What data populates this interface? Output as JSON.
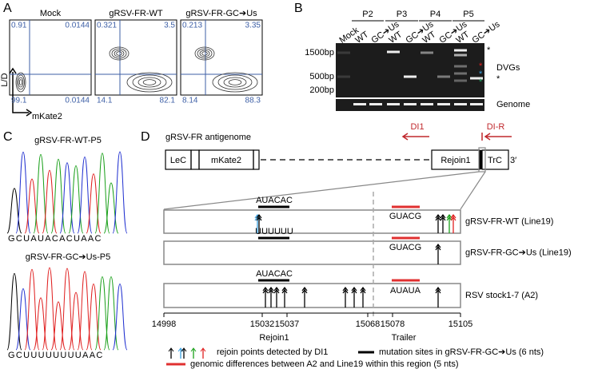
{
  "panels": {
    "A": {
      "label": "A",
      "y_axis": "L/D",
      "x_axis": "mKate2",
      "plots": [
        {
          "title": "Mock",
          "quadrants": [
            "0.91",
            "0.0144",
            "99.1",
            "0.0144"
          ]
        },
        {
          "title": "gRSV-FR-WT",
          "quadrants": [
            "0.321",
            "3.5",
            "14.1",
            "82.1"
          ]
        },
        {
          "title": "gRSV-FR-GC➔Us",
          "quadrants": [
            "0.213",
            "3.35",
            "8.14",
            "88.3"
          ]
        }
      ]
    },
    "B": {
      "label": "B",
      "groups": [
        "P2",
        "P3",
        "P4",
        "P5"
      ],
      "lanes": [
        "Mock",
        "WT",
        "GC➔Us",
        "WT",
        "GC➔Us",
        "WT",
        "GC➔Us",
        "WT",
        "GC➔Us"
      ],
      "ladder": [
        "1500bp",
        "500bp",
        "200bp"
      ],
      "band_labels": [
        "DVGs",
        "Genome"
      ]
    },
    "C": {
      "label": "C",
      "traces": [
        {
          "title": "gRSV-FR-WT-P5",
          "sequence": "GCUAUACACUAAC"
        },
        {
          "title": "gRSV-FR-GC➔Us-P5",
          "sequence": "GCUUUUUUUUAAC"
        }
      ]
    },
    "D": {
      "label": "D",
      "map_title": "gRSV-FR antigenome",
      "map_boxes": [
        "LeC",
        "mKate2",
        "Rejoin1",
        "TrC"
      ],
      "three_prime": "3′",
      "primers": [
        "DI1",
        "DI-R"
      ],
      "rows": [
        {
          "name": "gRSV-FR-WT (Line19)",
          "seq_left": "AUACAC",
          "seq_right": "GUACG"
        },
        {
          "name": "gRSV-FR-GC➔Us (Line19)",
          "seq_left": "UUUUUU",
          "seq_right": "GUACG"
        },
        {
          "name": "RSV stock1-7 (A2)",
          "seq_left": "AUACAC",
          "seq_right": "AUAUA"
        }
      ],
      "positions": [
        "14998",
        "15032",
        "15037",
        "15068",
        "15078",
        "15105"
      ],
      "regions": [
        "Rejoin1",
        "Trailer"
      ],
      "legend": [
        "rejoin points detected by DI1",
        "mutation sites in gRSV-FR-GC➔Us (6 nts)",
        "genomic differences between A2 and Line19 within this region (5 nts)"
      ]
    }
  }
}
